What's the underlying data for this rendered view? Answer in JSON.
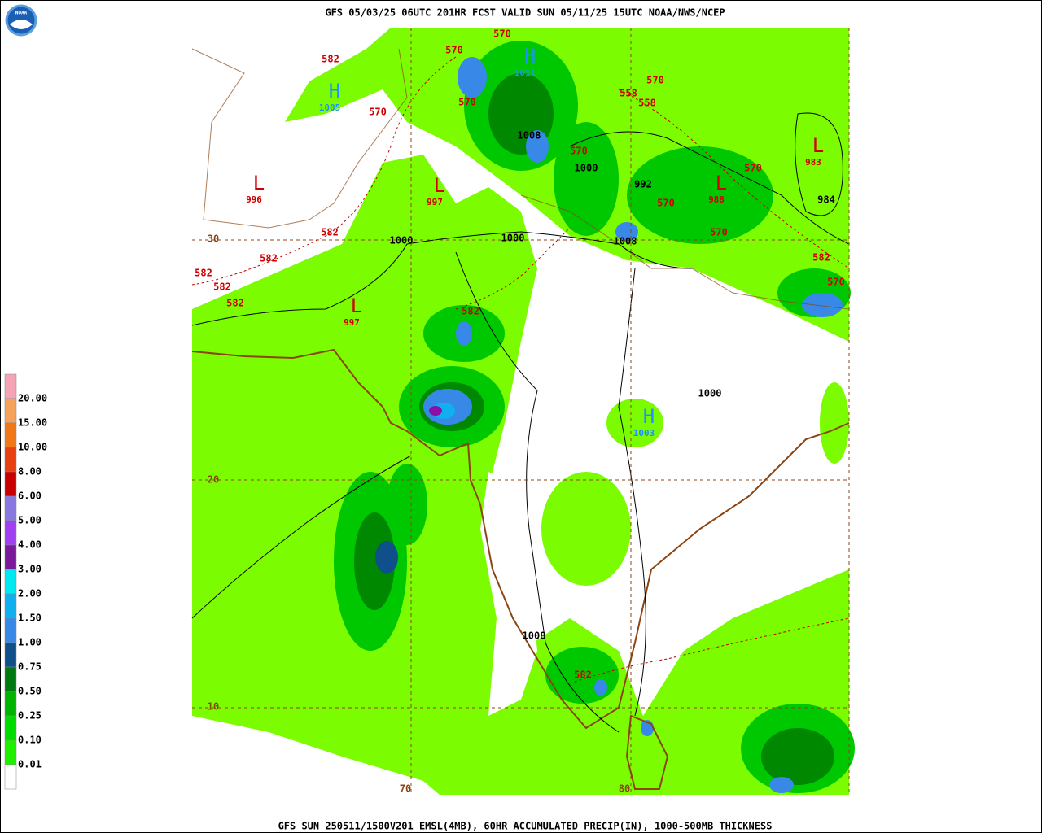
{
  "header": {
    "title": "GFS 05/03/25 06UTC 201HR FCST VALID SUN 05/11/25 15UTC NOAA/NWS/NCEP"
  },
  "footer": {
    "caption": "GFS SUN 250511/1500V201 EMSL(4MB), 60HR ACCUMULATED PRECIP(IN), 1000-500MB THICKNESS"
  },
  "legend": {
    "items": [
      {
        "label": "20.00",
        "color": "#f4a4b4"
      },
      {
        "label": "15.00",
        "color": "#f5a25a"
      },
      {
        "label": "10.00",
        "color": "#f07818"
      },
      {
        "label": "8.00",
        "color": "#e84010"
      },
      {
        "label": "6.00",
        "color": "#c80000"
      },
      {
        "label": "5.00",
        "color": "#8878e0"
      },
      {
        "label": "4.00",
        "color": "#a040f0"
      },
      {
        "label": "3.00",
        "color": "#7a1a9a"
      },
      {
        "label": "2.00",
        "color": "#00e8f0"
      },
      {
        "label": "1.50",
        "color": "#10b0f0"
      },
      {
        "label": "1.00",
        "color": "#3888e8"
      },
      {
        "label": "0.75",
        "color": "#10508a"
      },
      {
        "label": "0.50",
        "color": "#007a10"
      },
      {
        "label": "0.25",
        "color": "#00b400"
      },
      {
        "label": "0.10",
        "color": "#00dc00"
      },
      {
        "label": "0.01",
        "color": "#20f000"
      }
    ],
    "below_color": "#ffffff"
  },
  "map": {
    "lat_labels": [
      "30",
      "20",
      "10"
    ],
    "lon_labels": [
      "70",
      "80"
    ],
    "pressure_centers": [
      {
        "symbol": "L",
        "value": "996"
      },
      {
        "symbol": "L",
        "value": "997"
      },
      {
        "symbol": "L",
        "value": "997"
      },
      {
        "symbol": "L",
        "value": "988"
      },
      {
        "symbol": "L",
        "value": "983"
      },
      {
        "symbol": "H",
        "value": "1005"
      },
      {
        "symbol": "H",
        "value": "1011"
      },
      {
        "symbol": "H",
        "value": "1003"
      }
    ],
    "isobar_labels": [
      "1008",
      "1000",
      "992",
      "1000",
      "1000",
      "1008",
      "1000",
      "1008",
      "984"
    ],
    "thickness_labels": [
      "582",
      "570",
      "570",
      "570",
      "570",
      "570",
      "558",
      "558",
      "570",
      "570",
      "570",
      "570",
      "582",
      "582",
      "582",
      "582",
      "582",
      "582",
      "582",
      "570",
      "582"
    ]
  }
}
